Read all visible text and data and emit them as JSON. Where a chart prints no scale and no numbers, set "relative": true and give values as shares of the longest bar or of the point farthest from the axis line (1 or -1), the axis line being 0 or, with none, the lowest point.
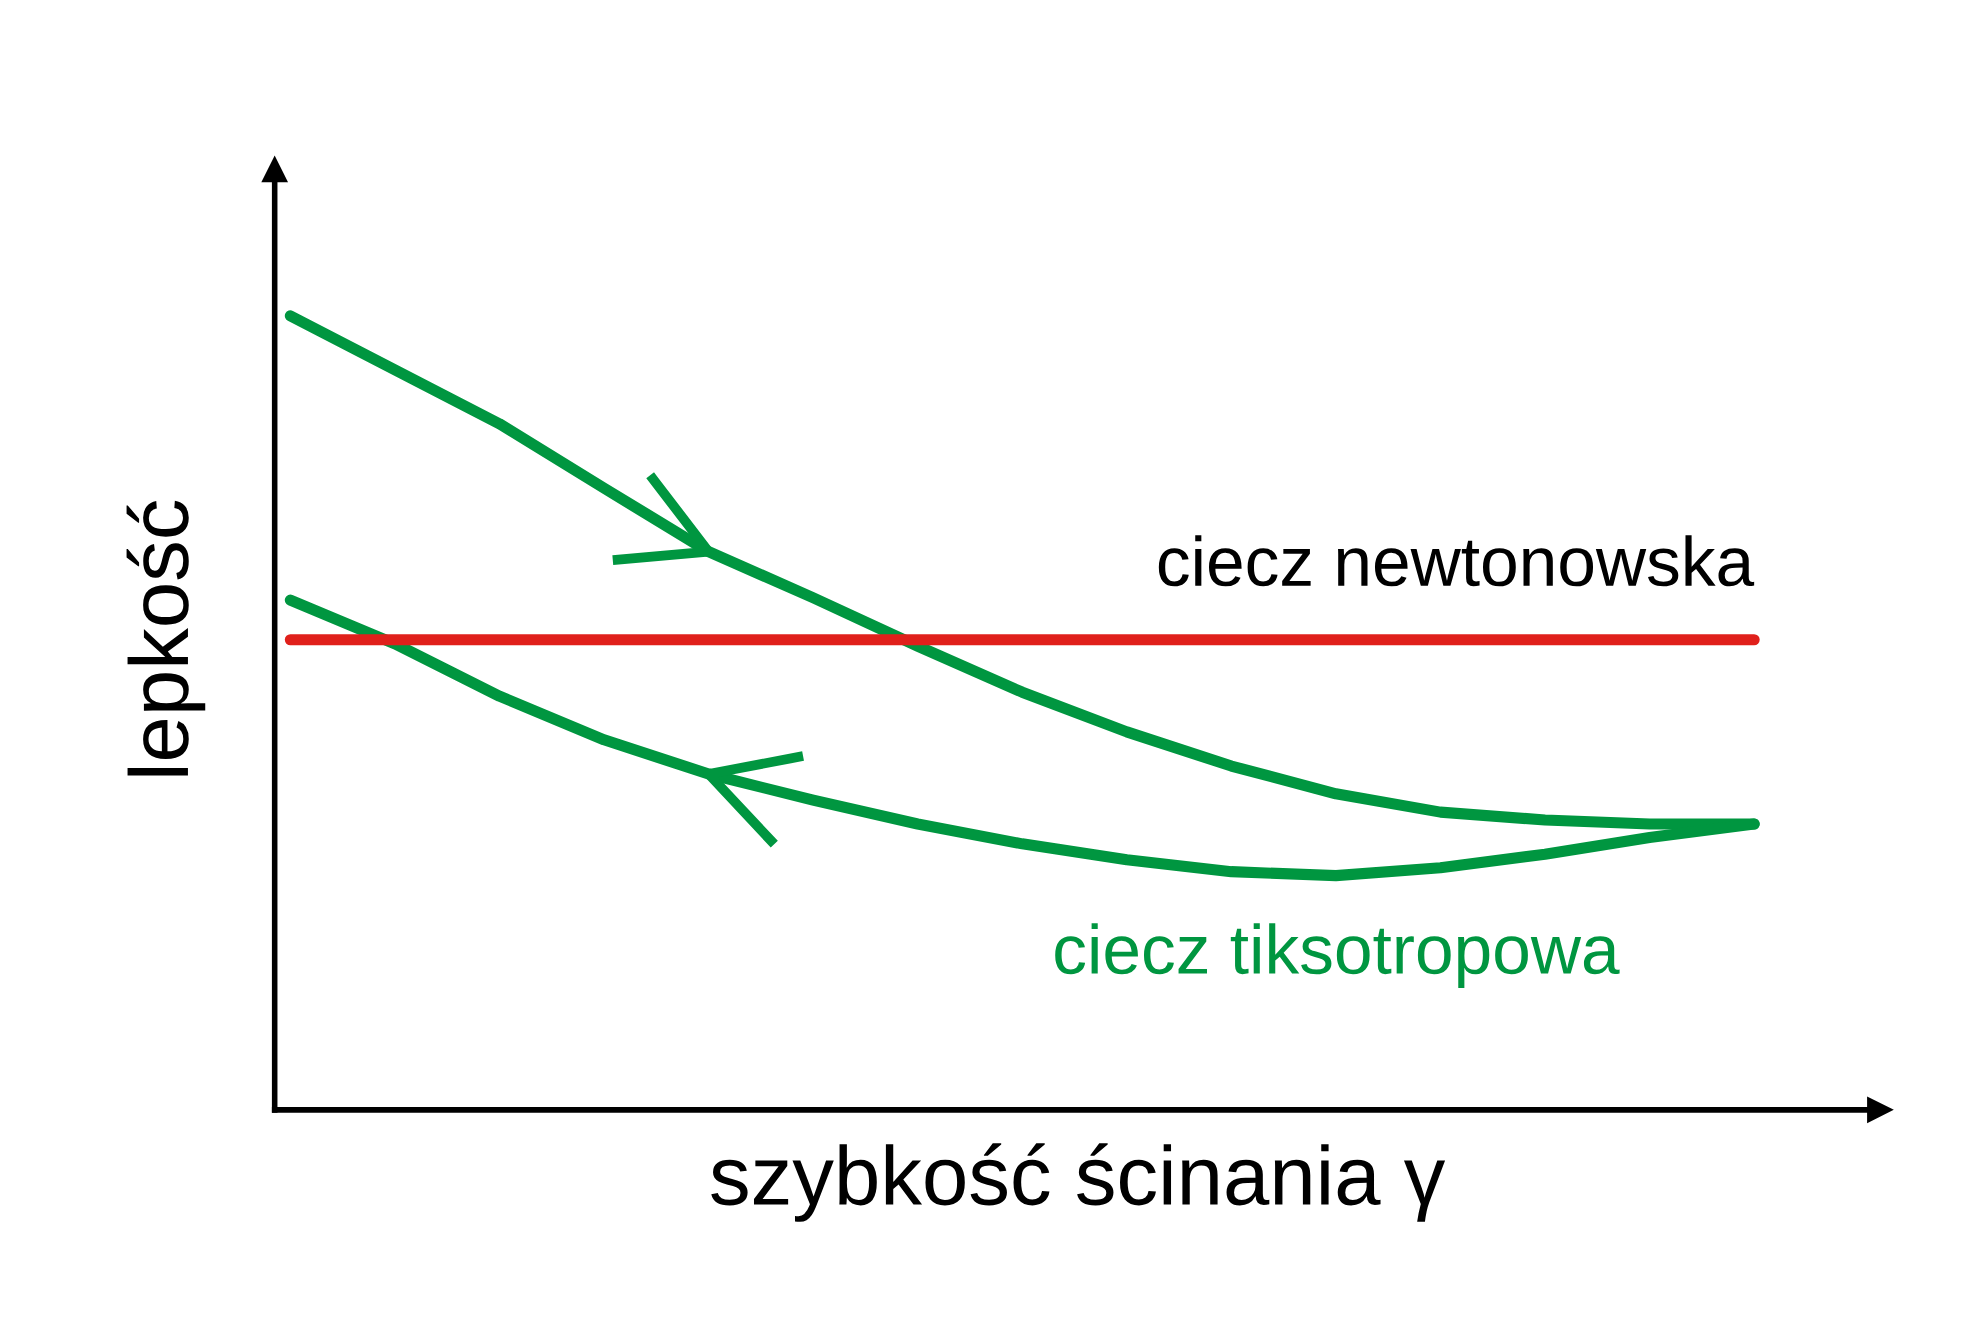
{
  "chart_data": {
    "type": "line",
    "relative": true,
    "xlabel": "szybkość ścinania γ",
    "ylabel": "lepkość",
    "categories": [
      null,
      null,
      null,
      null,
      null,
      null,
      null,
      null,
      null,
      null,
      null,
      null,
      null,
      null,
      null
    ],
    "series": [
      {
        "color": "#009640",
        "values": [
          1,
          0.932,
          0.864,
          0.783,
          0.703,
          0.645,
          0.584,
          0.526,
          0.476,
          0.433,
          0.398,
          0.375,
          0.365,
          0.36,
          0.36
        ]
      },
      {
        "name": "ciecz tiksotropowa",
        "color": "#009640",
        "values": [
          0.642,
          0.587,
          0.521,
          0.466,
          0.423,
          0.39,
          0.36,
          0.335,
          0.315,
          0.3,
          0.295,
          0.305,
          0.322,
          0.343,
          0.36
        ]
      },
      {
        "name": "ciecz newtonowska",
        "color": "#e0201b",
        "values": [
          0.592,
          0.592,
          0.592,
          0.592,
          0.592,
          0.592,
          0.592,
          0.592,
          0.592,
          0.592,
          0.592,
          0.592,
          0.592,
          0.592,
          0.592
        ]
      }
    ],
    "marker": "none",
    "line_style": "solid"
  }
}
